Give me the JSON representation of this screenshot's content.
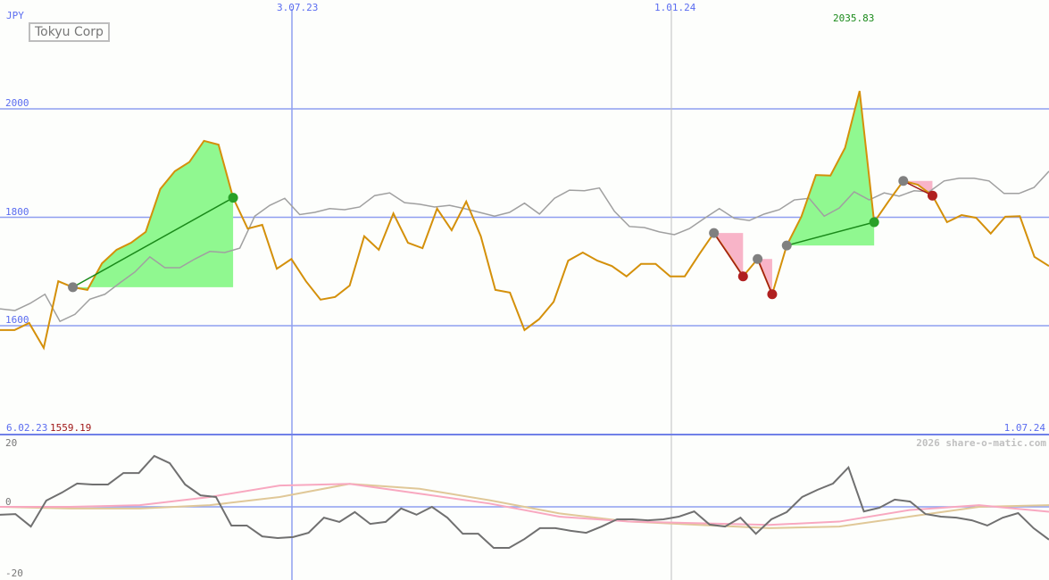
{
  "chart_data": {
    "type": "line",
    "title": "Tokyu Corp",
    "currency": "JPY",
    "x_start_label": "6.02.23",
    "x_end_label": "1.07.24",
    "x_tick_labels": [
      "3.07.23",
      "1.01.24"
    ],
    "y_ticks": [
      2000,
      1800,
      1600
    ],
    "ylim": [
      1400,
      2075
    ],
    "max_label": "2035.83",
    "min_label": "1559.19",
    "grid": true,
    "series": [
      {
        "color": "#d4900a",
        "values": [
          1592,
          1592,
          1605,
          1559,
          1682,
          1671,
          1666,
          1715,
          1740,
          1753,
          1773,
          1852,
          1885,
          1902,
          1941,
          1934,
          1836,
          1779,
          1786,
          1705,
          1723,
          1682,
          1648,
          1653,
          1674,
          1765,
          1740,
          1807,
          1753,
          1743,
          1816,
          1776,
          1829,
          1765,
          1666,
          1661,
          1592,
          1612,
          1644,
          1720,
          1735,
          1720,
          1710,
          1691,
          1714,
          1714,
          1691,
          1691,
          1732,
          1771,
          1732,
          1691,
          1723,
          1658,
          1748,
          1801,
          1878,
          1877,
          1928,
          2033,
          1791,
          1830,
          1867,
          1860,
          1840,
          1791,
          1804,
          1799,
          1770,
          1801,
          1802,
          1727,
          1710
        ]
      },
      {
        "color": "#a0a0a0",
        "values": [
          1631,
          1628,
          1641,
          1658,
          1608,
          1621,
          1649,
          1658,
          1679,
          1699,
          1727,
          1707,
          1707,
          1723,
          1737,
          1735,
          1743,
          1802,
          1822,
          1835,
          1805,
          1809,
          1816,
          1814,
          1819,
          1840,
          1845,
          1827,
          1824,
          1819,
          1822,
          1816,
          1809,
          1802,
          1809,
          1826,
          1806,
          1835,
          1850,
          1849,
          1854,
          1811,
          1783,
          1781,
          1773,
          1768,
          1779,
          1798,
          1816,
          1798,
          1794,
          1806,
          1814,
          1832,
          1835,
          1802,
          1817,
          1847,
          1832,
          1845,
          1839,
          1849,
          1847,
          1867,
          1872,
          1872,
          1867,
          1844,
          1844,
          1855,
          1885
        ]
      }
    ],
    "trades": [
      {
        "entry_index": 5,
        "exit_index": 16,
        "result": "win"
      },
      {
        "entry_index": 49,
        "exit_index": 51,
        "result": "loss"
      },
      {
        "entry_index": 52,
        "exit_index": 53,
        "result": "loss"
      },
      {
        "entry_index": 54,
        "exit_index": 60,
        "result": "win"
      },
      {
        "entry_index": 62,
        "exit_index": 64,
        "result": "loss"
      }
    ],
    "colors": {
      "win_fill": "#90f890",
      "loss_fill": "#f8b4c8",
      "win_line": "#1a8a1a",
      "loss_line": "#a01818",
      "grid": "#8f9ff0"
    },
    "oscillator": {
      "y_ticks": [
        20,
        0,
        -20
      ],
      "ylim": [
        -22,
        20
      ],
      "series": [
        {
          "color": "#707070",
          "values": [
            -2.4,
            -2.2,
            -6,
            1.9,
            4.3,
            7.1,
            6.8,
            6.8,
            10.3,
            10.3,
            15.5,
            13.3,
            6.8,
            3.5,
            3,
            -5.7,
            -5.7,
            -9,
            -9.5,
            -9.2,
            -7.9,
            -3.3,
            -4.6,
            -1.6,
            -5.2,
            -4.6,
            -0.5,
            -2.4,
            0,
            -3.3,
            -8.2,
            -8.2,
            -12.5,
            -12.5,
            -9.8,
            -6.5,
            -6.5,
            -7.3,
            -7.9,
            -6,
            -3.8,
            -3.8,
            -4.1,
            -3.8,
            -3,
            -1.4,
            -5.4,
            -6,
            -3.3,
            -8.2,
            -3.8,
            -1.6,
            3,
            5.2,
            7.1,
            12,
            -1.4,
            -0.3,
            2.2,
            1.6,
            -2.2,
            -3,
            -3.3,
            -4.1,
            -5.7,
            -3.3,
            -1.9,
            -6.5,
            -10
          ]
        },
        {
          "color": "#f8a8c0",
          "values": [
            0,
            0,
            0.5,
            3,
            6.5,
            7,
            4,
            1,
            -3,
            -4.5,
            -5,
            -5.5,
            -4.5,
            -1,
            0.5,
            -1.5
          ]
        },
        {
          "color": "#e0c898",
          "values": [
            0,
            -0.5,
            -0.5,
            0.5,
            3,
            7,
            5.5,
            2,
            -2,
            -4.5,
            -5.5,
            -6.5,
            -6,
            -3,
            0,
            0.5
          ]
        }
      ]
    }
  },
  "copyright": "2026 share-o-matic.com"
}
